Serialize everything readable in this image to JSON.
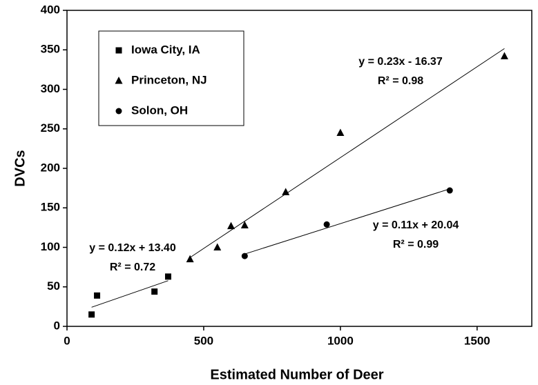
{
  "chart_data": {
    "type": "scatter",
    "xlabel": "Estimated Number of Deer",
    "ylabel": "DVCs",
    "xlim": [
      0,
      1700
    ],
    "ylim": [
      0,
      400
    ],
    "xticks": [
      0,
      500,
      1000,
      1500
    ],
    "yticks": [
      0,
      50,
      100,
      150,
      200,
      250,
      300,
      350,
      400
    ],
    "legend": "upper left",
    "series": [
      {
        "name": "Iowa City, IA",
        "color": "#000000",
        "marker": "square",
        "x": [
          90,
          110,
          320,
          370
        ],
        "values": [
          15,
          39,
          44,
          63
        ],
        "trendline": {
          "slope": 0.12,
          "intercept": 13.4,
          "x_range": [
            90,
            370
          ],
          "label": "y = 0.12x + 13.40",
          "r2_label": "R² = 0.72"
        }
      },
      {
        "name": "Princeton, NJ",
        "color": "#000000",
        "marker": "triangle",
        "x": [
          450,
          550,
          600,
          650,
          800,
          1000,
          1600
        ],
        "values": [
          85,
          100,
          127,
          128,
          170,
          245,
          342
        ],
        "trendline": {
          "slope": 0.23,
          "intercept": -16.37,
          "x_range": [
            450,
            1600
          ],
          "label": "y = 0.23x - 16.37",
          "r2_label": "R² = 0.98"
        }
      },
      {
        "name": "Solon, OH",
        "color": "#000000",
        "marker": "circle",
        "x": [
          650,
          950,
          1400
        ],
        "values": [
          89,
          129,
          172
        ],
        "trendline": {
          "slope": 0.11,
          "intercept": 20.04,
          "x_range": [
            650,
            1400
          ],
          "label": "y = 0.11x + 20.04",
          "r2_label": "R² = 0.99"
        }
      }
    ]
  }
}
